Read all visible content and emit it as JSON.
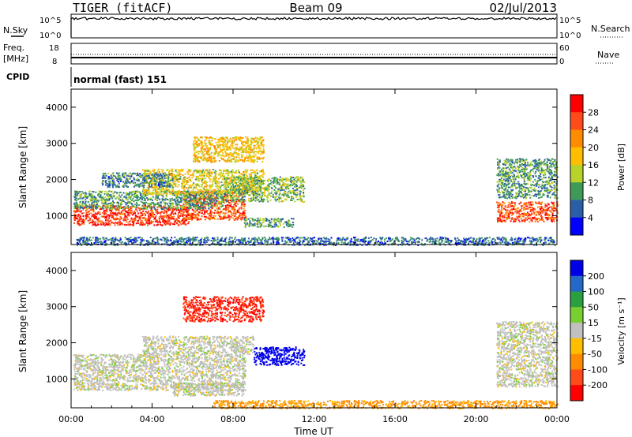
{
  "header": {
    "station": "TIGER (fitACF)",
    "beam": "Beam 09",
    "date": "02/Jul/2013"
  },
  "noise_panel": {
    "left_label": "N.Sky",
    "right_label": "N.Search",
    "left_ticks": [
      "10^5",
      "10^0"
    ],
    "right_ticks": [
      "10^5",
      "10^0"
    ]
  },
  "freq_panel": {
    "left_label_line1": "Freq.",
    "left_label_line2": "[MHz]",
    "left_ticks": [
      "18",
      "8"
    ],
    "right_label": "Nave",
    "right_ticks": [
      "60",
      "0"
    ],
    "freq_mhz": 11,
    "nave": 22
  },
  "cpid_panel": {
    "label": "CPID",
    "mode": "normal (fast) 151"
  },
  "axes": {
    "ylabel": "Slant Range [km]",
    "xlabel": "Time UT",
    "y_ticks": [
      "4000",
      "3000",
      "2000",
      "1000"
    ],
    "x_ticks": [
      "00:00",
      "04:00",
      "08:00",
      "12:00",
      "16:00",
      "20:00",
      "00:00"
    ]
  },
  "power_colorbar": {
    "label": "Power [dB]",
    "ticks": [
      "28",
      "24",
      "20",
      "16",
      "12",
      "8",
      "4"
    ],
    "colors": [
      "#ff0000",
      "#ff4a1a",
      "#ff8c00",
      "#ffbe00",
      "#b9d22a",
      "#3f9a58",
      "#2a5fa8",
      "#0000ff"
    ]
  },
  "velocity_colorbar": {
    "label": "Velocity [m s⁻¹]",
    "ticks": [
      "200",
      "100",
      "50",
      "15",
      "-15",
      "-50",
      "-100",
      "-200"
    ],
    "colors": [
      "#0000e8",
      "#2468c8",
      "#2aa040",
      "#78d030",
      "#c0c0c0",
      "#ffbe00",
      "#ff8c00",
      "#ff4a1a",
      "#ff0000"
    ]
  },
  "chart_data": [
    {
      "type": "heatmap",
      "panel": "power",
      "x_range_hours": [
        0,
        24
      ],
      "y_range_km": [
        200,
        4500
      ],
      "scatter_regions": [
        {
          "t0": 0.1,
          "t1": 5.8,
          "r0": 750,
          "r1": 1300,
          "value": 26
        },
        {
          "t0": 5.5,
          "t1": 8.6,
          "r0": 900,
          "r1": 1700,
          "value": 24
        },
        {
          "t0": 0.1,
          "t1": 7.5,
          "r0": 1200,
          "r1": 1700,
          "value": 8
        },
        {
          "t0": 3.5,
          "t1": 9.5,
          "r0": 1600,
          "r1": 2300,
          "value": 14
        },
        {
          "t0": 7.5,
          "t1": 11.5,
          "r0": 1400,
          "r1": 2100,
          "value": 10
        },
        {
          "t0": 6.0,
          "t1": 9.5,
          "r0": 2500,
          "r1": 3200,
          "value": 16
        },
        {
          "t0": 1.5,
          "t1": 5.0,
          "r0": 1800,
          "r1": 2200,
          "value": 6
        },
        {
          "t0": 8.5,
          "t1": 11.0,
          "r0": 700,
          "r1": 950,
          "value": 8
        },
        {
          "t0": 21.0,
          "t1": 24.0,
          "r0": 850,
          "r1": 1400,
          "value": 24
        },
        {
          "t0": 21.0,
          "t1": 24.0,
          "r0": 1500,
          "r1": 2600,
          "value": 8
        },
        {
          "t0": 0.2,
          "t1": 23.9,
          "r0": 200,
          "r1": 420,
          "value": 5
        }
      ]
    },
    {
      "type": "heatmap",
      "panel": "velocity",
      "x_range_hours": [
        0,
        24
      ],
      "y_range_km": [
        200,
        4500
      ],
      "scatter_regions": [
        {
          "t0": 0.1,
          "t1": 8.6,
          "r0": 700,
          "r1": 1700,
          "value": 0
        },
        {
          "t0": 3.5,
          "t1": 9.0,
          "r0": 1700,
          "r1": 2200,
          "value": 0
        },
        {
          "t0": 9.0,
          "t1": 11.5,
          "r0": 1400,
          "r1": 1900,
          "value": 200
        },
        {
          "t0": 5.5,
          "t1": 9.5,
          "r0": 2600,
          "r1": 3300,
          "value": -150
        },
        {
          "t0": 5.0,
          "t1": 8.5,
          "r0": 550,
          "r1": 900,
          "value": 0
        },
        {
          "t0": 21.0,
          "t1": 24.0,
          "r0": 800,
          "r1": 2600,
          "value": 0
        },
        {
          "t0": 7.0,
          "t1": 24.0,
          "r0": 200,
          "r1": 420,
          "value": -60
        }
      ]
    }
  ]
}
